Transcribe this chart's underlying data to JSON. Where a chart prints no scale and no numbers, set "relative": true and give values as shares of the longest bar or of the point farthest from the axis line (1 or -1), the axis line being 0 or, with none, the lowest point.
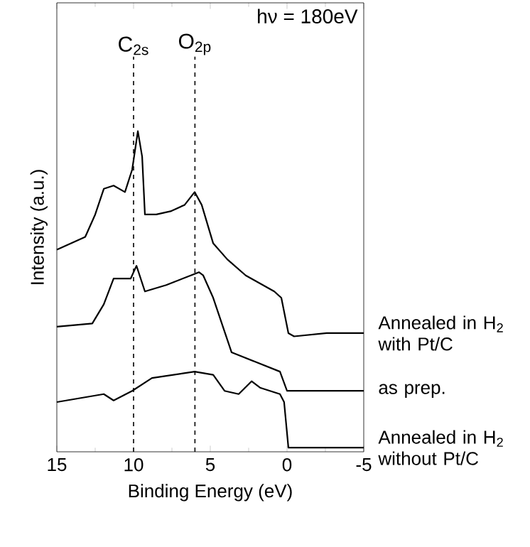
{
  "chart_data": {
    "type": "line",
    "relative": true,
    "xlabel": "Binding Energy (eV)",
    "ylabel": "Intensity (a.u.)",
    "xlim": [
      15,
      -5
    ],
    "xticks": [
      15,
      10,
      5,
      0,
      {
        "value": -5,
        "label": "-5"
      }
    ],
    "annotations": [
      "hν = 180eV"
    ],
    "ref_lines": [
      {
        "axis": "x",
        "value": 10,
        "label": "C$_{2s}$",
        "line_style": "dashed",
        "color": "#000000"
      },
      {
        "axis": "x",
        "value": 6,
        "label": "O$_{2p}$",
        "line_style": "dashed",
        "color": "#000000"
      }
    ],
    "series": [
      {
        "name": "Annealed in H$_{2}$ with Pt/C",
        "color": "#000000",
        "x": [
          15,
          13.15,
          12.5,
          11.94,
          11.3,
          10.56,
          10.09,
          9.72,
          9.44,
          9.26,
          8.52,
          7.59,
          6.67,
          6.02,
          5.56,
          4.81,
          3.89,
          2.69,
          0.83,
          0.37,
          -0.09,
          -0.46,
          -2.59,
          -5
        ],
        "values": [
          0.63,
          0.67,
          0.74,
          0.82,
          0.83,
          0.81,
          0.88,
          1.0,
          0.92,
          0.74,
          0.74,
          0.75,
          0.77,
          0.81,
          0.77,
          0.65,
          0.6,
          0.55,
          0.5,
          0.48,
          0.37,
          0.36,
          0.37,
          0.37
        ]
      },
      {
        "name": "as prep.",
        "color": "#000000",
        "x": [
          15,
          12.69,
          11.94,
          11.3,
          10.19,
          9.81,
          9.26,
          7.87,
          5.74,
          5.46,
          4.81,
          3.61,
          2.04,
          0.46,
          0,
          -5
        ],
        "values": [
          0.39,
          0.4,
          0.46,
          0.54,
          0.54,
          0.58,
          0.5,
          0.52,
          0.56,
          0.55,
          0.48,
          0.31,
          0.28,
          0.25,
          0.19,
          0.19
        ]
      },
      {
        "name": "Annealed in H$_{2}$ without Pt/C",
        "color": "#000000",
        "x": [
          15,
          11.94,
          11.3,
          10.09,
          8.8,
          6.02,
          4.81,
          4.07,
          3.15,
          2.31,
          1.76,
          0.46,
          0.19,
          -0.09,
          -5
        ],
        "values": [
          0.155,
          0.18,
          0.16,
          0.19,
          0.23,
          0.25,
          0.24,
          0.19,
          0.18,
          0.22,
          0.2,
          0.18,
          0.155,
          0.013,
          0.013
        ]
      }
    ]
  }
}
